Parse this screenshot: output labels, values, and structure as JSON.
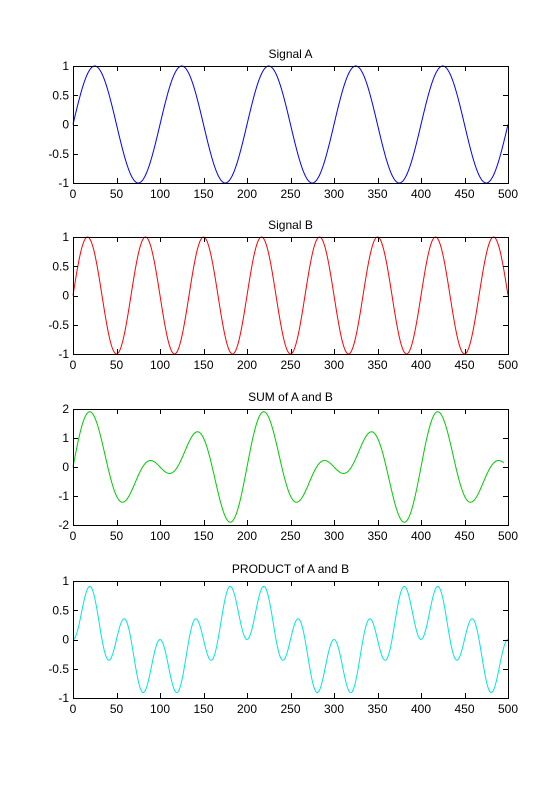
{
  "chart_data": [
    {
      "type": "line",
      "title": "Signal A",
      "xlabel": "",
      "ylabel": "",
      "xlim": [
        0,
        500
      ],
      "ylim": [
        -1,
        1
      ],
      "x_ticks": [
        0,
        50,
        100,
        150,
        200,
        250,
        300,
        350,
        400,
        450,
        500
      ],
      "x_tick_labels": [
        "0",
        "50",
        "100",
        "150",
        "200",
        "250",
        "300",
        "350",
        "400",
        "450",
        "500"
      ],
      "y_ticks": [
        1,
        0.5,
        0,
        -0.5,
        -1
      ],
      "y_tick_labels": [
        "1",
        "0.5",
        "0",
        "-0.5",
        "-1"
      ],
      "grid": false,
      "series": [
        {
          "color": "#0000ff",
          "formula": "sin(2*pi*x/100)",
          "x_range": [
            0,
            500
          ],
          "sample_step": 1
        }
      ]
    },
    {
      "type": "line",
      "title": "Signal B",
      "xlabel": "",
      "ylabel": "",
      "xlim": [
        0,
        500
      ],
      "ylim": [
        -1,
        1
      ],
      "x_ticks": [
        0,
        50,
        100,
        150,
        200,
        250,
        300,
        350,
        400,
        450,
        500
      ],
      "x_tick_labels": [
        "0",
        "50",
        "100",
        "150",
        "200",
        "250",
        "300",
        "350",
        "400",
        "450",
        "500"
      ],
      "y_ticks": [
        1,
        0.5,
        0,
        -0.5,
        -1
      ],
      "y_tick_labels": [
        "1",
        "0.5",
        "0",
        "-0.5",
        "-1"
      ],
      "grid": false,
      "series": [
        {
          "color": "#ff0000",
          "formula": "sin(2*pi*x/66.67)",
          "x_range": [
            0,
            500
          ],
          "sample_step": 1
        }
      ]
    },
    {
      "type": "line",
      "title": "SUM of A and B",
      "xlabel": "",
      "ylabel": "",
      "xlim": [
        0,
        500
      ],
      "ylim": [
        -2,
        2
      ],
      "x_ticks": [
        0,
        50,
        100,
        150,
        200,
        250,
        300,
        350,
        400,
        450,
        500
      ],
      "x_tick_labels": [
        "0",
        "50",
        "100",
        "150",
        "200",
        "250",
        "300",
        "350",
        "400",
        "450",
        "500"
      ],
      "y_ticks": [
        2,
        1,
        0,
        -1,
        -2
      ],
      "y_tick_labels": [
        "2",
        "1",
        "0",
        "-1",
        "-2"
      ],
      "grid": false,
      "series": [
        {
          "color": "#00cc00",
          "formula": "sin(2*pi*x/100) + sin(2*pi*x/66.67)",
          "x_range": [
            0,
            495
          ],
          "sample_step": 1
        }
      ]
    },
    {
      "type": "line",
      "title": "PRODUCT of A and B",
      "xlabel": "",
      "ylabel": "",
      "xlim": [
        0,
        500
      ],
      "ylim": [
        -1,
        1
      ],
      "x_ticks": [
        0,
        50,
        100,
        150,
        200,
        250,
        300,
        350,
        400,
        450,
        500
      ],
      "x_tick_labels": [
        "0",
        "50",
        "100",
        "150",
        "200",
        "250",
        "300",
        "350",
        "400",
        "450",
        "500"
      ],
      "y_ticks": [
        1,
        0.5,
        0,
        -0.5,
        -1
      ],
      "y_tick_labels": [
        "1",
        "0.5",
        "0",
        "-0.5",
        "-1"
      ],
      "grid": false,
      "series": [
        {
          "color": "#00e5e5",
          "formula": "sin(2*pi*x/100) * sin(2*pi*x/66.67)",
          "x_range": [
            0,
            500
          ],
          "sample_step": 1
        }
      ]
    }
  ]
}
